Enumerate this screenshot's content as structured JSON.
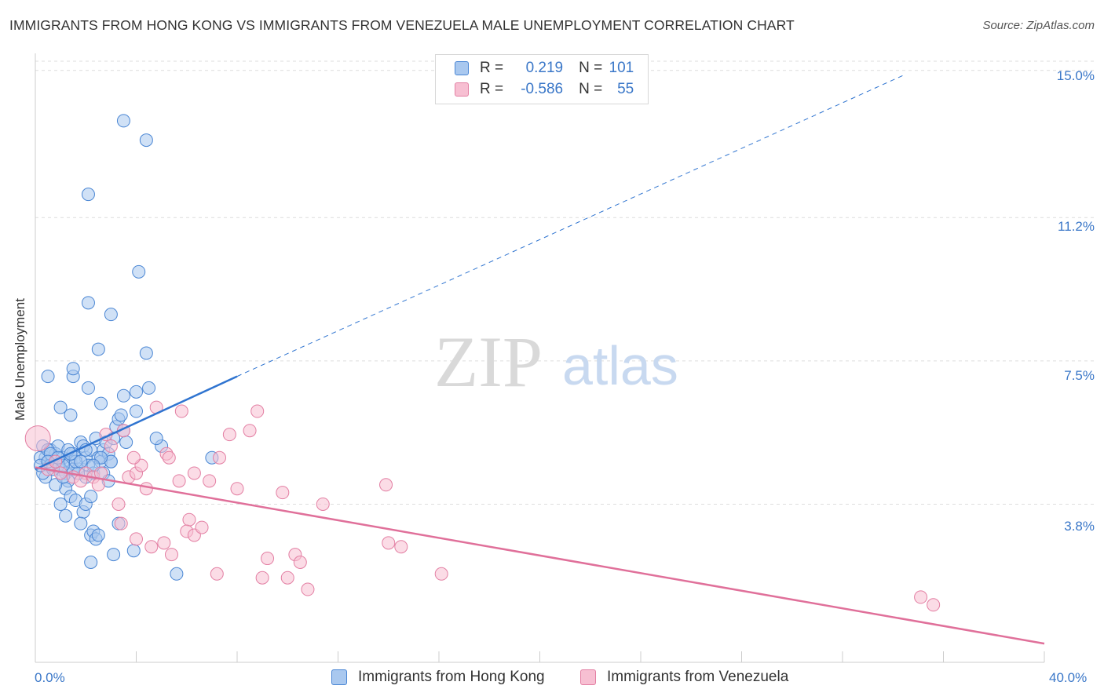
{
  "title": "IMMIGRANTS FROM HONG KONG VS IMMIGRANTS FROM VENEZUELA MALE UNEMPLOYMENT CORRELATION CHART",
  "source": "Source: ZipAtlas.com",
  "watermark": {
    "zip": "ZIP",
    "atlas": "atlas"
  },
  "legend": {
    "rows": [
      {
        "r_label": "R =",
        "r_value": "0.219",
        "n_label": "N =",
        "n_value": "101"
      },
      {
        "r_label": "R =",
        "r_value": "-0.586",
        "n_label": "N =",
        "n_value": "55"
      }
    ]
  },
  "colors": {
    "hong_kong_fill": "#a9c8ef",
    "hong_kong_stroke": "#4a86d4",
    "hong_kong_line": "#2f74d0",
    "venezuela_fill": "#f7bfd2",
    "venezuela_stroke": "#e37fa3",
    "venezuela_line": "#e0709a",
    "tick_text": "#3a77c8",
    "grid": "#dddddd"
  },
  "chart_data": {
    "type": "scatter",
    "title": "IMMIGRANTS FROM HONG KONG VS IMMIGRANTS FROM VENEZUELA MALE UNEMPLOYMENT CORRELATION CHART",
    "xlabel": "",
    "ylabel": "Male Unemployment",
    "xlim": [
      0,
      40
    ],
    "ylim": [
      0,
      15.4
    ],
    "x_tick_labels": [
      "0.0%",
      "40.0%"
    ],
    "y_ticks": [
      3.8,
      7.5,
      11.2,
      15.0
    ],
    "y_tick_labels": [
      "3.8%",
      "7.5%",
      "11.2%",
      "15.0%"
    ],
    "grid": true,
    "legend_position": "top-center",
    "series": [
      {
        "name": "Immigrants from Hong Kong",
        "r": 0.219,
        "n": 101,
        "trend": {
          "x0": 0,
          "y0": 4.7,
          "x1": 8,
          "y1": 7.1,
          "dashed_to_x": 34.5,
          "dashed_to_y": 14.9
        },
        "points": [
          [
            0.3,
            5.3
          ],
          [
            0.4,
            5.0
          ],
          [
            0.5,
            4.9
          ],
          [
            0.6,
            5.2
          ],
          [
            0.7,
            4.8
          ],
          [
            0.8,
            5.1
          ],
          [
            0.9,
            5.3
          ],
          [
            1.0,
            4.7
          ],
          [
            0.4,
            4.5
          ],
          [
            0.6,
            4.8
          ],
          [
            1.1,
            5.0
          ],
          [
            1.2,
            4.6
          ],
          [
            1.3,
            4.4
          ],
          [
            1.4,
            4.9
          ],
          [
            1.5,
            5.1
          ],
          [
            1.6,
            5.0
          ],
          [
            1.7,
            4.7
          ],
          [
            1.8,
            5.4
          ],
          [
            1.9,
            5.3
          ],
          [
            2.0,
            5.0
          ],
          [
            2.1,
            4.8
          ],
          [
            2.2,
            5.2
          ],
          [
            2.3,
            4.6
          ],
          [
            2.4,
            5.5
          ],
          [
            2.5,
            5.0
          ],
          [
            2.6,
            4.9
          ],
          [
            2.7,
            5.2
          ],
          [
            2.8,
            5.4
          ],
          [
            2.9,
            5.1
          ],
          [
            3.0,
            4.9
          ],
          [
            3.1,
            5.5
          ],
          [
            3.2,
            5.8
          ],
          [
            3.3,
            6.0
          ],
          [
            3.4,
            6.1
          ],
          [
            3.5,
            5.7
          ],
          [
            3.6,
            5.4
          ],
          [
            4.0,
            6.2
          ],
          [
            1.0,
            6.3
          ],
          [
            1.4,
            6.1
          ],
          [
            2.6,
            6.4
          ],
          [
            0.5,
            7.1
          ],
          [
            1.5,
            7.1
          ],
          [
            1.5,
            7.3
          ],
          [
            2.1,
            6.8
          ],
          [
            3.5,
            6.6
          ],
          [
            4.0,
            6.7
          ],
          [
            4.5,
            6.8
          ],
          [
            2.5,
            7.8
          ],
          [
            4.4,
            7.7
          ],
          [
            2.1,
            9.0
          ],
          [
            3.0,
            8.7
          ],
          [
            4.1,
            9.8
          ],
          [
            2.1,
            11.8
          ],
          [
            3.5,
            13.7
          ],
          [
            4.4,
            13.2
          ],
          [
            1.2,
            4.2
          ],
          [
            1.4,
            4.0
          ],
          [
            1.6,
            3.9
          ],
          [
            1.9,
            3.6
          ],
          [
            2.0,
            3.8
          ],
          [
            2.2,
            4.0
          ],
          [
            1.0,
            3.8
          ],
          [
            1.2,
            3.5
          ],
          [
            1.8,
            3.3
          ],
          [
            2.2,
            3.0
          ],
          [
            2.3,
            3.1
          ],
          [
            2.4,
            2.9
          ],
          [
            2.5,
            3.0
          ],
          [
            3.3,
            3.3
          ],
          [
            3.1,
            2.5
          ],
          [
            3.9,
            2.6
          ],
          [
            2.2,
            2.3
          ],
          [
            5.6,
            2.0
          ],
          [
            5.0,
            5.3
          ],
          [
            4.8,
            5.5
          ],
          [
            7.0,
            5.0
          ],
          [
            0.3,
            4.6
          ],
          [
            0.8,
            4.3
          ],
          [
            1.1,
            4.5
          ],
          [
            1.5,
            4.7
          ],
          [
            2.0,
            4.5
          ],
          [
            2.7,
            4.6
          ],
          [
            2.9,
            4.4
          ],
          [
            3.0,
            4.9
          ],
          [
            1.7,
            4.6
          ],
          [
            0.9,
            4.8
          ],
          [
            0.2,
            5.0
          ],
          [
            0.5,
            5.2
          ],
          [
            1.3,
            5.2
          ],
          [
            2.6,
            5.0
          ],
          [
            0.6,
            5.1
          ],
          [
            1.1,
            4.8
          ],
          [
            1.6,
            4.9
          ],
          [
            0.7,
            4.7
          ],
          [
            0.2,
            4.8
          ],
          [
            2.3,
            4.8
          ],
          [
            1.8,
            4.9
          ],
          [
            1.4,
            5.1
          ],
          [
            0.9,
            5.0
          ],
          [
            2.0,
            5.2
          ],
          [
            0.5,
            4.9
          ]
        ]
      },
      {
        "name": "Immigrants from Venezuela",
        "r": -0.586,
        "n": 55,
        "trend": {
          "x0": 0,
          "y0": 4.75,
          "x1": 40,
          "y1": 0.2
        },
        "points": [
          [
            0.1,
            5.5
          ],
          [
            0.5,
            4.7
          ],
          [
            1.0,
            4.6
          ],
          [
            1.5,
            4.5
          ],
          [
            2.0,
            4.6
          ],
          [
            2.3,
            4.5
          ],
          [
            2.6,
            4.6
          ],
          [
            2.5,
            4.3
          ],
          [
            3.0,
            5.3
          ],
          [
            3.5,
            5.7
          ],
          [
            3.7,
            4.5
          ],
          [
            4.0,
            4.6
          ],
          [
            4.2,
            4.8
          ],
          [
            4.4,
            4.2
          ],
          [
            3.3,
            3.8
          ],
          [
            3.4,
            3.3
          ],
          [
            4.0,
            2.9
          ],
          [
            4.6,
            2.7
          ],
          [
            5.1,
            2.8
          ],
          [
            5.4,
            2.5
          ],
          [
            4.8,
            6.3
          ],
          [
            5.8,
            6.2
          ],
          [
            5.2,
            5.1
          ],
          [
            5.3,
            5.0
          ],
          [
            6.3,
            4.6
          ],
          [
            7.3,
            5.0
          ],
          [
            7.7,
            5.6
          ],
          [
            8.5,
            5.7
          ],
          [
            8.8,
            6.2
          ],
          [
            8.0,
            4.2
          ],
          [
            9.8,
            4.1
          ],
          [
            6.1,
            3.4
          ],
          [
            6.0,
            3.1
          ],
          [
            6.3,
            3.0
          ],
          [
            6.6,
            3.2
          ],
          [
            7.2,
            2.0
          ],
          [
            9.2,
            2.4
          ],
          [
            9.0,
            1.9
          ],
          [
            10.3,
            2.5
          ],
          [
            10.5,
            2.3
          ],
          [
            10.0,
            1.9
          ],
          [
            10.8,
            1.6
          ],
          [
            11.4,
            3.8
          ],
          [
            13.9,
            4.3
          ],
          [
            14.0,
            2.8
          ],
          [
            14.5,
            2.7
          ],
          [
            16.1,
            2.0
          ],
          [
            35.1,
            1.4
          ],
          [
            35.6,
            1.2
          ],
          [
            2.8,
            5.6
          ],
          [
            3.9,
            5.0
          ],
          [
            1.8,
            4.4
          ],
          [
            0.8,
            4.9
          ],
          [
            6.9,
            4.4
          ],
          [
            5.7,
            4.4
          ]
        ]
      }
    ]
  },
  "bottom_legend": [
    "Immigrants from Hong Kong",
    "Immigrants from Venezuela"
  ],
  "y_axis_label": "Male Unemployment"
}
